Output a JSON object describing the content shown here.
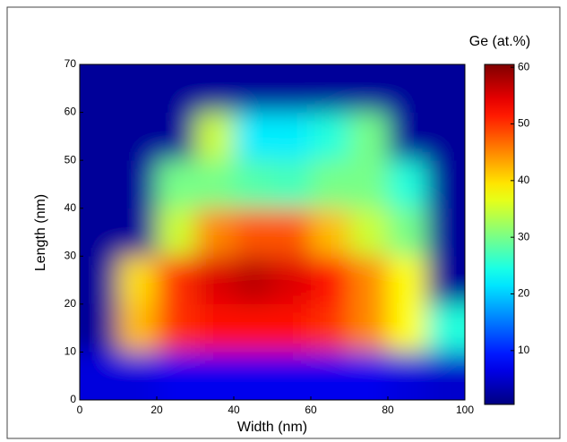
{
  "chart_data": {
    "type": "heatmap",
    "xlabel": "Width (nm)",
    "ylabel": "Length (nm)",
    "colorbar_label": "Ge (at.%)",
    "colormap": "jet",
    "x": [
      5,
      15,
      25,
      35,
      45,
      55,
      65,
      75,
      85,
      95
    ],
    "y": [
      5,
      15,
      25,
      35,
      45,
      55,
      65
    ],
    "z": [
      [
        6,
        6,
        7,
        7,
        7,
        7,
        7,
        7,
        6,
        5
      ],
      [
        2,
        42,
        50,
        52,
        52,
        52,
        50,
        45,
        38,
        25
      ],
      [
        2,
        40,
        50,
        55,
        57,
        55,
        52,
        45,
        38,
        2
      ],
      [
        2,
        2,
        35,
        45,
        48,
        48,
        42,
        35,
        30,
        2
      ],
      [
        2,
        2,
        30,
        30,
        28,
        27,
        30,
        30,
        25,
        2
      ],
      [
        2,
        2,
        2,
        35,
        22,
        22,
        25,
        30,
        2,
        2
      ],
      [
        2,
        2,
        2,
        2,
        2,
        2,
        2,
        2,
        2,
        2
      ]
    ],
    "xlim": [
      0,
      100
    ],
    "ylim": [
      0,
      70
    ],
    "xticks": [
      0,
      20,
      40,
      60,
      80,
      100
    ],
    "yticks": [
      0,
      10,
      20,
      30,
      40,
      50,
      60,
      70
    ],
    "clim": [
      0.5,
      60.5
    ],
    "cticks": [
      10,
      20,
      30,
      40,
      50,
      60
    ]
  }
}
